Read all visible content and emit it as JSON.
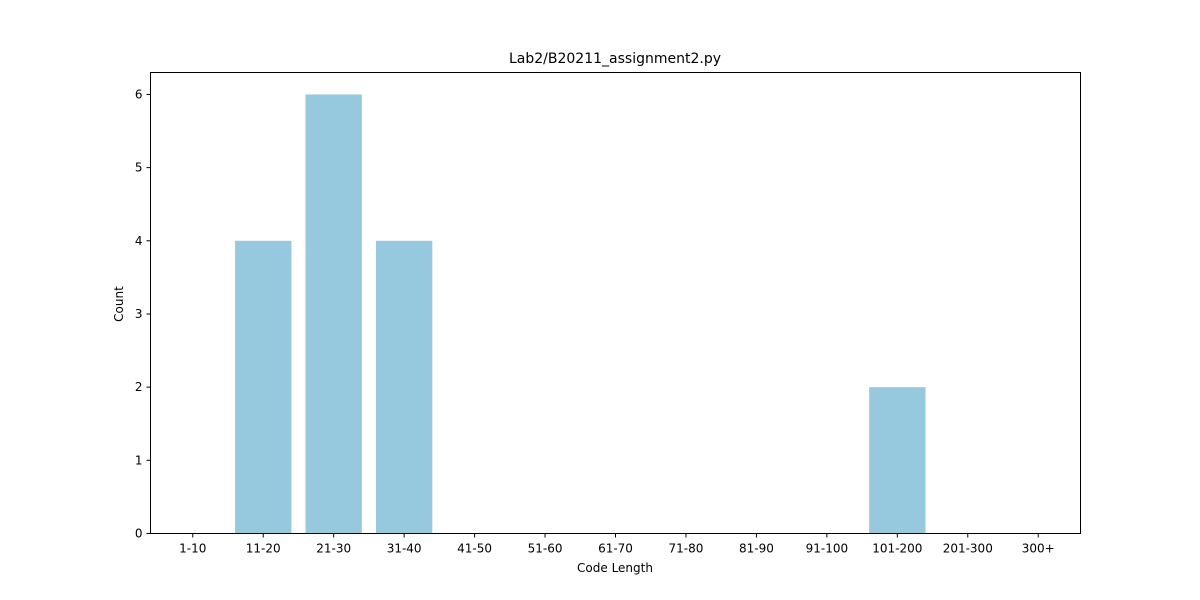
{
  "chart_data": {
    "type": "bar",
    "title": "Lab2/B20211_assignment2.py",
    "xlabel": "Code Length",
    "ylabel": "Count",
    "categories": [
      "1-10",
      "11-20",
      "21-30",
      "31-40",
      "41-50",
      "51-60",
      "61-70",
      "71-80",
      "81-90",
      "91-100",
      "101-200",
      "201-300",
      "300+"
    ],
    "values": [
      0,
      4,
      6,
      4,
      0,
      0,
      0,
      0,
      0,
      0,
      2,
      0,
      0
    ],
    "ylim": [
      0,
      6.3
    ],
    "yticks": [
      "0",
      "1",
      "2",
      "3",
      "4",
      "5",
      "6"
    ],
    "bar_color": "#96c9dd",
    "grid": false
  }
}
